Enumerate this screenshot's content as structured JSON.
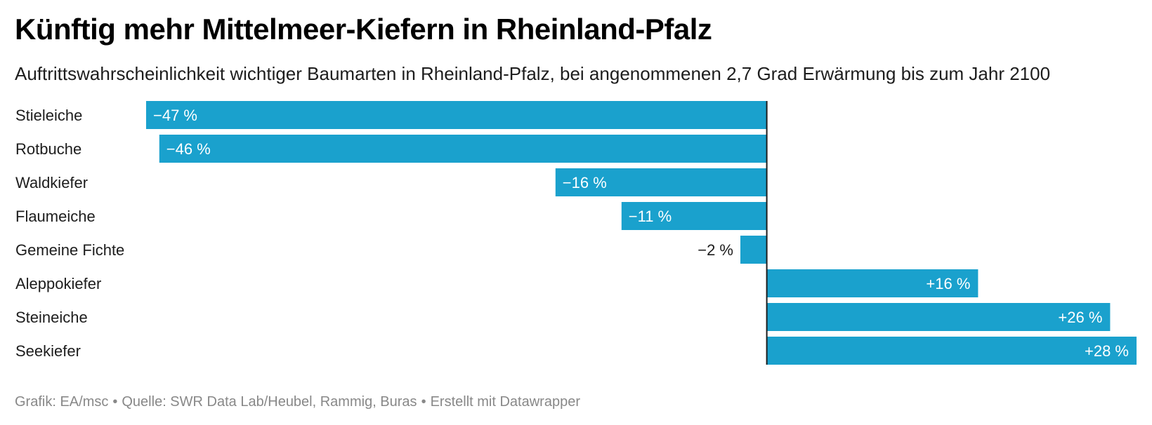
{
  "header": {
    "title": "Künftig mehr Mittelmeer-Kiefern in Rheinland-Pfalz",
    "subtitle": "Auftrittswahrscheinlichkeit wichtiger Baumarten in Rheinland-Pfalz, bei angenommenen 2,7 Grad Erwärmung bis zum Jahr 2100"
  },
  "footer": {
    "credit": "Grafik: EA/msc",
    "source": "Quelle: SWR Data Lab/Heubel, Rammig, Buras",
    "tool": "Erstellt mit Datawrapper",
    "separator": "•"
  },
  "colors": {
    "bar": "#1aa1cd",
    "zero_line": "#1d1d1d",
    "label_inside": "#ffffff",
    "label_outside": "#1d1d1d"
  },
  "chart_data": {
    "type": "bar",
    "orientation": "horizontal",
    "title": "Künftig mehr Mittelmeer-Kiefern in Rheinland-Pfalz",
    "subtitle": "Auftrittswahrscheinlichkeit wichtiger Baumarten in Rheinland-Pfalz, bei angenommenen 2,7 Grad Erwärmung bis zum Jahr 2100",
    "xlabel": "",
    "ylabel": "",
    "unit": "%",
    "categories": [
      "Stieleiche",
      "Rotbuche",
      "Waldkiefer",
      "Flaumeiche",
      "Gemeine Fichte",
      "Aleppokiefer",
      "Steineiche",
      "Seekiefer"
    ],
    "values": [
      -47,
      -46,
      -16,
      -11,
      -2,
      16,
      26,
      28
    ],
    "value_labels": [
      "−47 %",
      "−46 %",
      "−16 %",
      "−11 %",
      "−2 %",
      "+16 %",
      "+26 %",
      "+28 %"
    ],
    "xlim": [
      -47,
      28
    ],
    "grid": false,
    "legend": "none"
  }
}
